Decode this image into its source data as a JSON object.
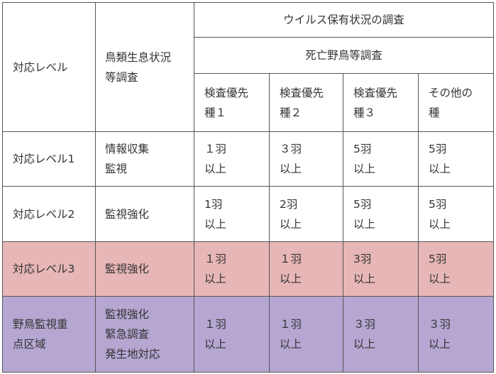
{
  "header": {
    "level_col": "対応レベル",
    "survey_col": [
      "鳥類生息状況",
      "等調査"
    ],
    "virus_survey": "ウイルス保有状況の調査",
    "dead_bird_survey": "死亡野鳥等調査",
    "species": [
      [
        "検査優先",
        "種１"
      ],
      [
        "検査優先",
        "種２"
      ],
      [
        "検査優先",
        "種３"
      ],
      [
        "その他の",
        "種"
      ]
    ]
  },
  "rows": [
    {
      "level": [
        "対応レベル1"
      ],
      "monitoring": [
        "情報収集",
        "監視"
      ],
      "values": [
        [
          "１羽",
          "以上"
        ],
        [
          "３羽",
          "以上"
        ],
        [
          "5羽",
          "以上"
        ],
        [
          "5羽",
          "以上"
        ]
      ],
      "color": "#ffffff"
    },
    {
      "level": [
        "対応レベル2"
      ],
      "monitoring": [
        "監視強化"
      ],
      "values": [
        [
          "1羽",
          "以上"
        ],
        [
          "2羽",
          "以上"
        ],
        [
          "5羽",
          "以上"
        ],
        [
          "5羽",
          "以上"
        ]
      ],
      "color": "#ffffff"
    },
    {
      "level": [
        "対応レベル3"
      ],
      "monitoring": [
        "監視強化"
      ],
      "values": [
        [
          "１羽",
          "以上"
        ],
        [
          "１羽",
          "以上"
        ],
        [
          "3羽",
          "以上"
        ],
        [
          "5羽",
          "以上"
        ]
      ],
      "color": "#e7b6b6"
    },
    {
      "level": [
        "野鳥監視重",
        "点区域"
      ],
      "monitoring": [
        "監視強化",
        "緊急調査",
        "発生地対応"
      ],
      "values": [
        [
          "１羽",
          "以上"
        ],
        [
          "１羽",
          "以上"
        ],
        [
          "３羽",
          "以上"
        ],
        [
          "３羽",
          "以上"
        ]
      ],
      "color": "#b5a6d2"
    }
  ]
}
